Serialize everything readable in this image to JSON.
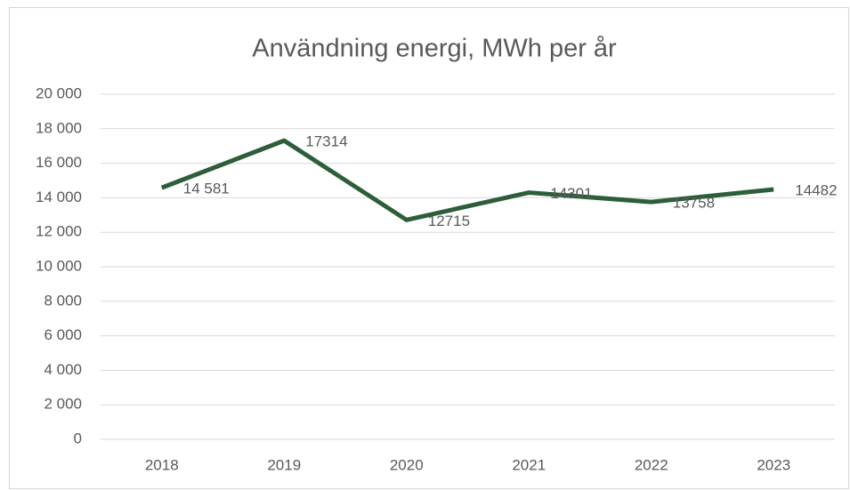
{
  "chart_data": {
    "type": "line",
    "title": "Användning energi, MWh per år",
    "categories": [
      "2018",
      "2019",
      "2020",
      "2021",
      "2022",
      "2023"
    ],
    "series": [
      {
        "color": "#2d5e3a",
        "values": [
          14581,
          17314,
          12715,
          14301,
          13758,
          14482
        ],
        "value_labels": [
          "14 581",
          "17314",
          "12715",
          "14301",
          "13758",
          "14482"
        ]
      }
    ],
    "ylim": [
      0,
      20000
    ],
    "yticks": [
      0,
      {
        "value": 2000,
        "label": "2 000"
      },
      {
        "value": 4000,
        "label": "4 000"
      },
      {
        "value": 6000,
        "label": "6 000"
      },
      {
        "value": 8000,
        "label": "8 000"
      },
      {
        "value": 10000,
        "label": "10 000"
      },
      {
        "value": 12000,
        "label": "12 000"
      },
      {
        "value": 14000,
        "label": "14 000"
      },
      {
        "value": 16000,
        "label": "16 000"
      },
      {
        "value": 18000,
        "label": "18 000"
      },
      {
        "value": 20000,
        "label": "20 000"
      }
    ],
    "grid": true
  }
}
